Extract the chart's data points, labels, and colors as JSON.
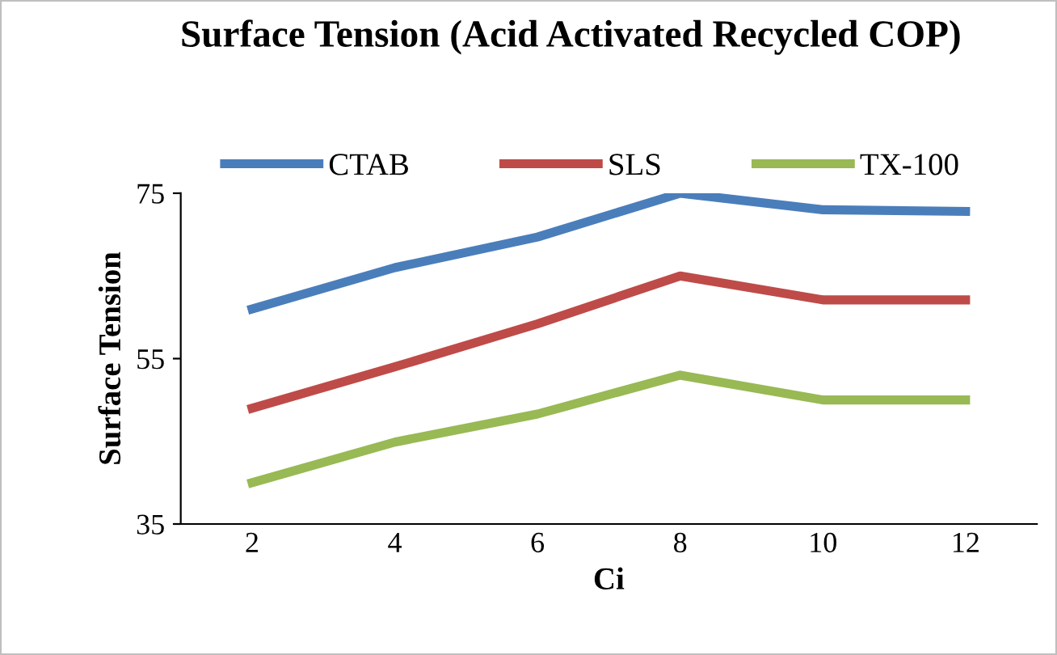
{
  "chart_data": {
    "type": "line",
    "title": "Surface Tension (Acid Activated Recycled COP)",
    "xlabel": "Ci",
    "ylabel": "Surface Tension",
    "categories": [
      "2",
      "4",
      "6",
      "8",
      "10",
      "12"
    ],
    "series": [
      {
        "name": "CTAB",
        "color": "#4a7ebb",
        "values": [
          61,
          66,
          69.7,
          75,
          73,
          72.8
        ]
      },
      {
        "name": "SLS",
        "color": "#be4b48",
        "values": [
          49,
          54,
          59.2,
          65,
          62.1,
          62.1
        ]
      },
      {
        "name": "TX-100",
        "color": "#98b954",
        "values": [
          40,
          44.9,
          48.3,
          53,
          50,
          50
        ]
      }
    ],
    "ylim": [
      35,
      75
    ],
    "yticks": [
      35,
      55,
      75
    ],
    "grid": false,
    "legend": "top",
    "marker": "none",
    "line_style": "solid"
  }
}
